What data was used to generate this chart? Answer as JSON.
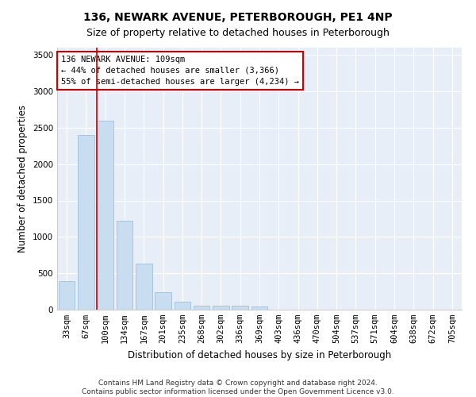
{
  "title": "136, NEWARK AVENUE, PETERBOROUGH, PE1 4NP",
  "subtitle": "Size of property relative to detached houses in Peterborough",
  "xlabel": "Distribution of detached houses by size in Peterborough",
  "ylabel": "Number of detached properties",
  "categories": [
    "33sqm",
    "67sqm",
    "100sqm",
    "134sqm",
    "167sqm",
    "201sqm",
    "235sqm",
    "268sqm",
    "302sqm",
    "336sqm",
    "369sqm",
    "403sqm",
    "436sqm",
    "470sqm",
    "504sqm",
    "537sqm",
    "571sqm",
    "604sqm",
    "638sqm",
    "672sqm",
    "705sqm"
  ],
  "values": [
    390,
    2400,
    2600,
    1220,
    630,
    240,
    110,
    60,
    50,
    50,
    45,
    0,
    0,
    0,
    0,
    0,
    0,
    0,
    0,
    0,
    0
  ],
  "bar_color": "#c8ddf0",
  "bar_edge_color": "#a0c0dc",
  "property_line_color": "#cc0000",
  "annotation_text": "136 NEWARK AVENUE: 109sqm\n← 44% of detached houses are smaller (3,366)\n55% of semi-detached houses are larger (4,234) →",
  "annotation_box_facecolor": "#ffffff",
  "annotation_box_edgecolor": "#cc0000",
  "ylim": [
    0,
    3600
  ],
  "yticks": [
    0,
    500,
    1000,
    1500,
    2000,
    2500,
    3000,
    3500
  ],
  "bg_color": "#ffffff",
  "plot_bg_color": "#e8eef8",
  "grid_color": "#ffffff",
  "title_fontsize": 10,
  "axis_label_fontsize": 8.5,
  "tick_fontsize": 7.5,
  "annotation_fontsize": 7.5,
  "footer_fontsize": 6.5,
  "footer_text": "Contains HM Land Registry data © Crown copyright and database right 2024.\nContains public sector information licensed under the Open Government Licence v3.0."
}
